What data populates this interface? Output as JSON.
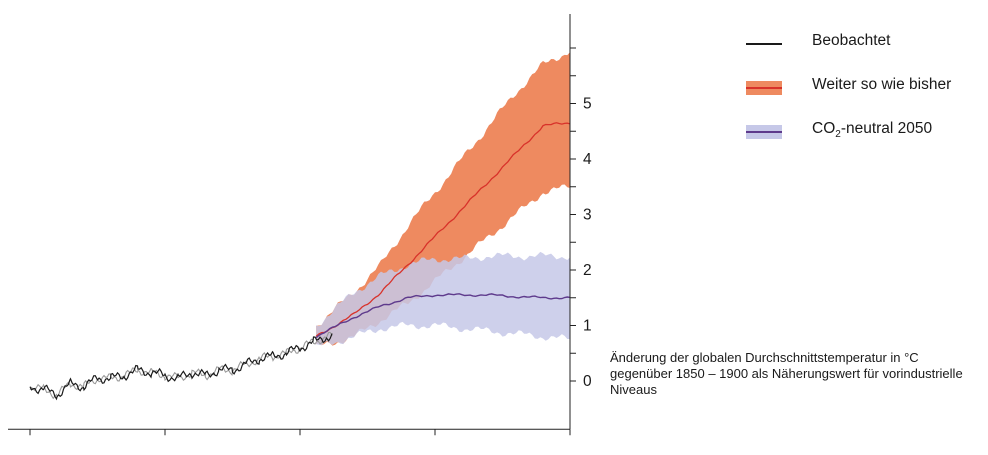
{
  "legend": {
    "observed_label": "Beobachtet",
    "bau_label": "Weiter so wie bisher",
    "neutral_prefix": "CO",
    "neutral_sub": "2",
    "neutral_suffix": "-neutral 2050"
  },
  "y_axis_note": "Änderung der globalen Durchschnittstemperatur in °C gegenüber 1850 – 1900 als Näherungswert für vorindustrielle Niveaus",
  "colors": {
    "observed": "#1a1a1a",
    "observed_shadow": "#999999",
    "bau_band": "#ee8a60",
    "bau_line": "#d8322a",
    "neutral_band": "#c6c8e8",
    "neutral_line": "#5e3a8c",
    "overlap_band": "#e3a49c"
  },
  "chart_data": {
    "type": "line",
    "xlim": [
      1900,
      2100
    ],
    "ylim": [
      -0.4,
      6.5
    ],
    "x_ticks": [
      1900,
      1950,
      2000,
      2050,
      2100
    ],
    "y_ticks": [
      0,
      1,
      2,
      3,
      4,
      5
    ],
    "y_axis_side": "right",
    "xlabel": "",
    "ylabel": "",
    "series": [
      {
        "name": "Beobachtet",
        "x": [
          1900,
          1905,
          1910,
          1915,
          1920,
          1925,
          1930,
          1935,
          1940,
          1945,
          1950,
          1955,
          1960,
          1965,
          1970,
          1975,
          1980,
          1985,
          1990,
          1995,
          2000,
          2005,
          2010,
          2012
        ],
        "y": [
          -0.1,
          -0.15,
          -0.25,
          -0.05,
          -0.1,
          0.05,
          0.05,
          0.1,
          0.2,
          0.15,
          0.1,
          0.05,
          0.15,
          0.1,
          0.2,
          0.2,
          0.3,
          0.4,
          0.45,
          0.5,
          0.6,
          0.7,
          0.8,
          0.8
        ]
      },
      {
        "name": "Weiter so wie bisher",
        "x": [
          2006,
          2020,
          2030,
          2040,
          2050,
          2060,
          2070,
          2080,
          2090,
          2100
        ],
        "y": [
          0.8,
          1.2,
          1.6,
          2.1,
          2.6,
          3.1,
          3.6,
          4.1,
          4.6,
          4.65
        ],
        "band_low": [
          0.6,
          0.8,
          1.1,
          1.4,
          1.8,
          2.2,
          2.6,
          3.0,
          3.4,
          3.5
        ],
        "band_high": [
          1.0,
          1.6,
          2.1,
          2.8,
          3.4,
          4.0,
          4.6,
          5.2,
          5.7,
          5.95
        ]
      },
      {
        "name": "CO₂-neutral 2050",
        "x": [
          2006,
          2020,
          2030,
          2040,
          2050,
          2060,
          2070,
          2080,
          2090,
          2100
        ],
        "y": [
          0.8,
          1.15,
          1.35,
          1.5,
          1.55,
          1.55,
          1.55,
          1.52,
          1.5,
          1.5
        ],
        "band_low": [
          0.6,
          0.8,
          0.95,
          1.0,
          1.0,
          0.95,
          0.9,
          0.85,
          0.8,
          0.75
        ],
        "band_high": [
          1.0,
          1.6,
          1.9,
          2.1,
          2.2,
          2.2,
          2.25,
          2.25,
          2.25,
          2.25
        ]
      }
    ]
  }
}
